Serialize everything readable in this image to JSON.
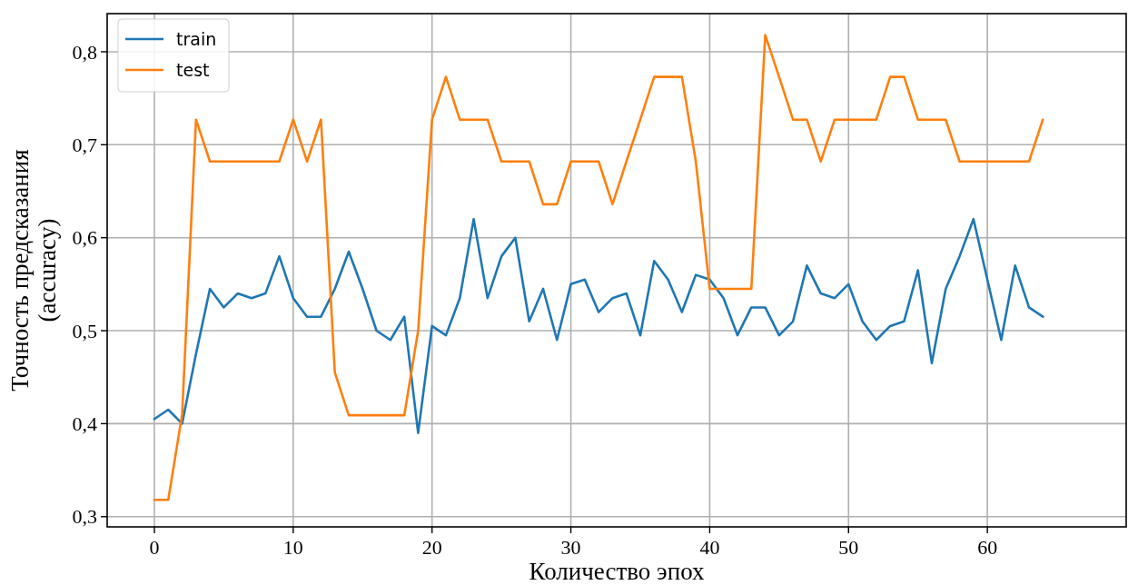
{
  "chart_data": {
    "type": "line",
    "xlabel": "Количество эпох",
    "ylabel": "Точность предсказания\n(accuracy)",
    "x": [
      0,
      1,
      2,
      3,
      4,
      5,
      6,
      7,
      8,
      9,
      10,
      11,
      12,
      13,
      14,
      15,
      16,
      17,
      18,
      19,
      20,
      21,
      22,
      23,
      24,
      25,
      26,
      27,
      28,
      29,
      30,
      31,
      32,
      33,
      34,
      35,
      36,
      37,
      38,
      39,
      40,
      41,
      42,
      43,
      44,
      45,
      46,
      47,
      48,
      49,
      50,
      51,
      52,
      53,
      54,
      55,
      56,
      57,
      58,
      59,
      60,
      61,
      62,
      63,
      64
    ],
    "series": [
      {
        "name": "train",
        "color": "#1f77b4",
        "values": [
          0.405,
          0.415,
          0.4,
          0.475,
          0.545,
          0.525,
          0.54,
          0.535,
          0.54,
          0.58,
          0.535,
          0.515,
          0.515,
          0.545,
          0.585,
          0.545,
          0.5,
          0.49,
          0.515,
          0.39,
          0.505,
          0.495,
          0.535,
          0.62,
          0.535,
          0.58,
          0.6,
          0.51,
          0.545,
          0.49,
          0.55,
          0.555,
          0.52,
          0.535,
          0.54,
          0.495,
          0.575,
          0.555,
          0.52,
          0.56,
          0.555,
          0.535,
          0.495,
          0.525,
          0.525,
          0.495,
          0.51,
          0.57,
          0.54,
          0.535,
          0.55,
          0.51,
          0.49,
          0.505,
          0.51,
          0.565,
          0.465,
          0.545,
          0.58,
          0.62,
          0.555,
          0.49,
          0.57,
          0.525,
          0.515
        ]
      },
      {
        "name": "test",
        "color": "#ff7f0e",
        "values": [
          0.318,
          0.318,
          0.41,
          0.727,
          0.682,
          0.682,
          0.682,
          0.682,
          0.682,
          0.682,
          0.727,
          0.682,
          0.727,
          0.455,
          0.409,
          0.409,
          0.409,
          0.409,
          0.409,
          0.5,
          0.727,
          0.773,
          0.727,
          0.727,
          0.727,
          0.682,
          0.682,
          0.682,
          0.636,
          0.636,
          0.682,
          0.682,
          0.682,
          0.636,
          0.682,
          0.727,
          0.773,
          0.773,
          0.773,
          0.682,
          0.545,
          0.545,
          0.545,
          0.545,
          0.818,
          0.773,
          0.727,
          0.727,
          0.682,
          0.727,
          0.727,
          0.727,
          0.727,
          0.773,
          0.773,
          0.727,
          0.727,
          0.727,
          0.682,
          0.682,
          0.682,
          0.682,
          0.682,
          0.682,
          0.727
        ]
      }
    ],
    "xlim": [
      -3.4,
      70
    ],
    "ylim": [
      0.289,
      0.841
    ],
    "xticks": [
      0,
      10,
      20,
      30,
      40,
      50,
      60
    ],
    "yticks": [
      {
        "value": 0.3,
        "label": "0,3"
      },
      {
        "value": 0.4,
        "label": "0,4"
      },
      {
        "value": 0.5,
        "label": "0,5"
      },
      {
        "value": 0.6,
        "label": "0,6"
      },
      {
        "value": 0.7,
        "label": "0,7"
      },
      {
        "value": 0.8,
        "label": "0,8"
      }
    ],
    "grid": true,
    "legend": "top left",
    "line_style": "solid"
  }
}
